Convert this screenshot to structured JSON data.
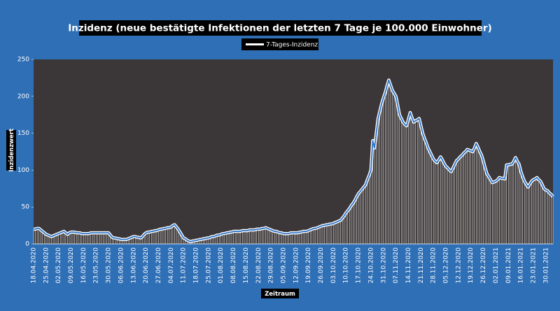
{
  "chart_data": {
    "type": "line",
    "title": "Inzidenz (neue bestätigte Infektionen der letzten 7 Tage je 100.000 Einwohner)",
    "y_label": "Inzidenzwert",
    "x_label": "Zeitraum",
    "legend": "top",
    "drop_lines": true,
    "categories": [
      "18.04.2020",
      null,
      null,
      null,
      null,
      null,
      null,
      "25.04.2020",
      null,
      null,
      null,
      null,
      null,
      null,
      "02.05.2020",
      null,
      null,
      null,
      null,
      null,
      null,
      "09.05.2020",
      null,
      null,
      null,
      null,
      null,
      null,
      "16.05.2020",
      null,
      null,
      null,
      null,
      null,
      null,
      "23.05.2020",
      null,
      null,
      null,
      null,
      null,
      null,
      "30.05.2020",
      null,
      null,
      null,
      null,
      null,
      null,
      "06.06.2020",
      null,
      null,
      null,
      null,
      null,
      null,
      "13.06.2020",
      null,
      null,
      null,
      null,
      null,
      null,
      "20.06.2020",
      null,
      null,
      null,
      null,
      null,
      null,
      "27.06.2020",
      null,
      null,
      null,
      null,
      null,
      null,
      "04.07.2020",
      null,
      null,
      null,
      null,
      null,
      null,
      "11.07.2020",
      null,
      null,
      null,
      null,
      null,
      null,
      "18.07.2020",
      null,
      null,
      null,
      null,
      null,
      null,
      "25.07.2020",
      null,
      null,
      null,
      null,
      null,
      null,
      "01.08.2020",
      null,
      null,
      null,
      null,
      null,
      null,
      "08.08.2020",
      null,
      null,
      null,
      null,
      null,
      null,
      "15.08.2020",
      null,
      null,
      null,
      null,
      null,
      null,
      "22.08.2020",
      null,
      null,
      null,
      null,
      null,
      null,
      "29.08.2020",
      null,
      null,
      null,
      null,
      null,
      null,
      "05.09.2020",
      null,
      null,
      null,
      null,
      null,
      null,
      "12.09.2020",
      null,
      null,
      null,
      null,
      null,
      null,
      "19.09.2020",
      null,
      null,
      null,
      null,
      null,
      null,
      "26.09.2020",
      null,
      null,
      null,
      null,
      null,
      null,
      "03.10.2020",
      null,
      null,
      null,
      null,
      null,
      null,
      "10.10.2020",
      null,
      null,
      null,
      null,
      null,
      null,
      "17.10.2020",
      null,
      null,
      null,
      null,
      null,
      null,
      "24.10.2020",
      null,
      null,
      null,
      null,
      null,
      null,
      "31.10.2020",
      null,
      null,
      null,
      null,
      null,
      null,
      "07.11.2020",
      null,
      null,
      null,
      null,
      null,
      null,
      "14.11.2020",
      null,
      null,
      null,
      null,
      null,
      null,
      "21.11.2020",
      null,
      null,
      null,
      null,
      null,
      null,
      "28.11.2020",
      null,
      null,
      null,
      null,
      null,
      null,
      "05.12.2020",
      null,
      null,
      null,
      null,
      null,
      null,
      "12.12.2020",
      null,
      null,
      null,
      null,
      null,
      null,
      "19.12.2020",
      null,
      null,
      null,
      null,
      null,
      null,
      "26.12.2020",
      null,
      null,
      null,
      null,
      null,
      null,
      "02.01.2021",
      null,
      null,
      null,
      null,
      null,
      null,
      "09.01.2021",
      null,
      null,
      null,
      null,
      null,
      null,
      "16.01.2021",
      null,
      null,
      null,
      null,
      null,
      null,
      "23.01.2021",
      null,
      null,
      null,
      null,
      null,
      null,
      "30.01.2021",
      null,
      null,
      null,
      null
    ],
    "series": [
      {
        "name": "7-Tages-Inzidenz",
        "color": "#2f74c6",
        "values": [
          20,
          20,
          21,
          21,
          19,
          17,
          15,
          13,
          12,
          11,
          10,
          11,
          12,
          13,
          14,
          15,
          16,
          17,
          15,
          13,
          15,
          16,
          16,
          16,
          15,
          15,
          15,
          14,
          14,
          14,
          14,
          14,
          15,
          15,
          15,
          15,
          15,
          15,
          15,
          15,
          15,
          15,
          15,
          12,
          9,
          8,
          8,
          7,
          7,
          6,
          6,
          6,
          6,
          7,
          8,
          9,
          10,
          10,
          9,
          9,
          8,
          10,
          13,
          15,
          16,
          16,
          17,
          17,
          18,
          18,
          19,
          20,
          20,
          21,
          21,
          22,
          22,
          23,
          25,
          26,
          23,
          20,
          16,
          12,
          8,
          7,
          5,
          4,
          3,
          4,
          4,
          5,
          5,
          6,
          6,
          7,
          7,
          8,
          8,
          9,
          10,
          10,
          11,
          12,
          12,
          13,
          14,
          14,
          15,
          15,
          16,
          16,
          17,
          17,
          17,
          17,
          17,
          18,
          18,
          18,
          18,
          19,
          19,
          19,
          19,
          20,
          20,
          20,
          21,
          21,
          22,
          21,
          20,
          19,
          18,
          17,
          17,
          16,
          15,
          15,
          14,
          14,
          14,
          14,
          15,
          15,
          15,
          15,
          15,
          16,
          16,
          17,
          17,
          17,
          18,
          19,
          20,
          21,
          21,
          22,
          23,
          24,
          25,
          25,
          26,
          26,
          27,
          27,
          28,
          29,
          30,
          31,
          32,
          35,
          38,
          42,
          45,
          48,
          52,
          55,
          59,
          64,
          68,
          71,
          74,
          77,
          80,
          87,
          93,
          100,
          140,
          130,
          150,
          170,
          180,
          190,
          198,
          205,
          214,
          222,
          215,
          208,
          204,
          200,
          188,
          175,
          170,
          165,
          162,
          160,
          169,
          178,
          171,
          165,
          167,
          168,
          170,
          160,
          150,
          143,
          137,
          130,
          125,
          120,
          115,
          112,
          110,
          114,
          118,
          114,
          109,
          105,
          103,
          100,
          98,
          103,
          108,
          113,
          115,
          118,
          120,
          123,
          125,
          128,
          127,
          126,
          125,
          130,
          136,
          131,
          125,
          120,
          112,
          103,
          95,
          91,
          87,
          83,
          84,
          85,
          87,
          90,
          89,
          89,
          88,
          107,
          107,
          108,
          108,
          112,
          117,
          112,
          108,
          98,
          91,
          85,
          81,
          77,
          81,
          85,
          87,
          88,
          90,
          87,
          85,
          80,
          75,
          73,
          72,
          69,
          67,
          64
        ]
      }
    ],
    "ylim": [
      0,
      250
    ],
    "yticks": [
      0,
      50,
      100,
      150,
      200,
      250
    ]
  }
}
